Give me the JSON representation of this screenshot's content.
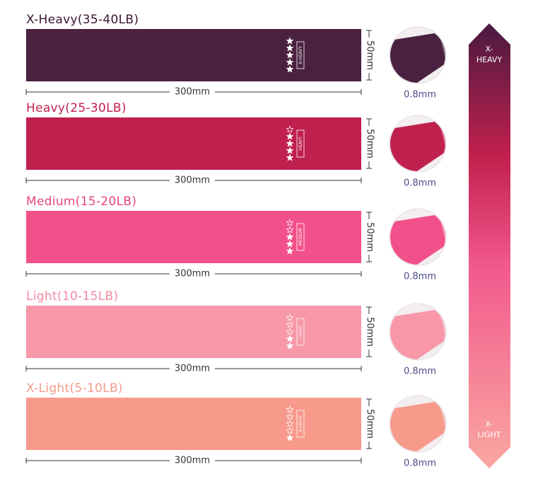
{
  "bands": [
    {
      "title": "X-Heavy(35-40LB)",
      "label": "X-HEAVY",
      "stars": 5,
      "length": "300mm",
      "width": "50mm",
      "thickness": "0.8mm",
      "color": "#4a2140",
      "title_color": "#3a1530"
    },
    {
      "title": "Heavy(25-30LB)",
      "label": "HEAVY",
      "stars": 4,
      "length": "300mm",
      "width": "50mm",
      "thickness": "0.8mm",
      "color": "#c0204e",
      "title_color": "#c0204e"
    },
    {
      "title": "Medium(15-20LB)",
      "label": "MEDIUM",
      "stars": 3,
      "length": "300mm",
      "width": "50mm",
      "thickness": "0.8mm",
      "color": "#f2508a",
      "title_color": "#e8457e"
    },
    {
      "title": "Light(10-15LB)",
      "label": "LIGHT",
      "stars": 2,
      "length": "300mm",
      "width": "50mm",
      "thickness": "0.8mm",
      "color": "#f797a8",
      "title_color": "#f48aa0"
    },
    {
      "title": "X-Light(5-10LB)",
      "label": "X-LIGHT",
      "stars": 1,
      "length": "300mm",
      "width": "50mm",
      "thickness": "0.8mm",
      "color": "#f79a8c",
      "title_color": "#f49a8a"
    }
  ],
  "max_stars": 5,
  "scale": {
    "top": [
      "X-",
      "HEAVY"
    ],
    "bottom": [
      "X-",
      "LIGHT"
    ]
  }
}
